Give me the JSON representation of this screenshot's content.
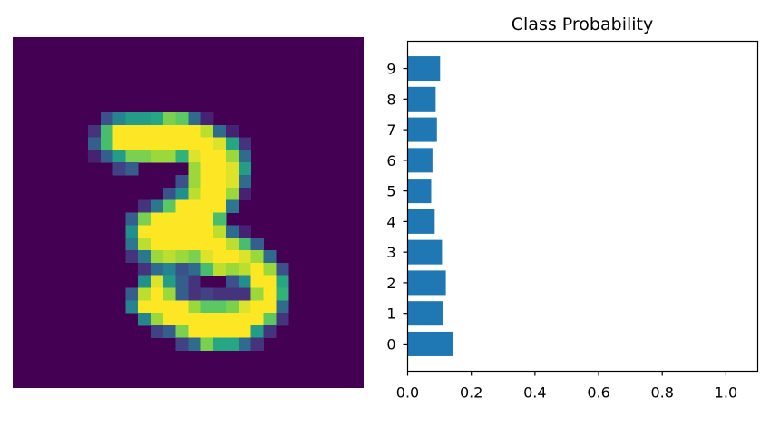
{
  "chart_data": [
    {
      "type": "heatmap",
      "colormap": "viridis",
      "rows": 28,
      "cols": 28,
      "value_range": [
        0,
        1
      ],
      "nonzero_pixels": [
        [
          6,
          7,
          0.25
        ],
        [
          6,
          8,
          0.45
        ],
        [
          6,
          9,
          0.55
        ],
        [
          6,
          10,
          0.55
        ],
        [
          6,
          11,
          0.6
        ],
        [
          6,
          12,
          0.8
        ],
        [
          6,
          13,
          0.75
        ],
        [
          6,
          14,
          0.35
        ],
        [
          6,
          15,
          0.1
        ],
        [
          7,
          6,
          0.15
        ],
        [
          7,
          7,
          0.7
        ],
        [
          7,
          8,
          1
        ],
        [
          7,
          9,
          1
        ],
        [
          7,
          10,
          1
        ],
        [
          7,
          11,
          1
        ],
        [
          7,
          12,
          1
        ],
        [
          7,
          13,
          1
        ],
        [
          7,
          14,
          1
        ],
        [
          7,
          15,
          0.9
        ],
        [
          7,
          16,
          0.35
        ],
        [
          7,
          17,
          0.1
        ],
        [
          8,
          6,
          0.3
        ],
        [
          8,
          7,
          0.7
        ],
        [
          8,
          8,
          1
        ],
        [
          8,
          9,
          1
        ],
        [
          8,
          10,
          1
        ],
        [
          8,
          11,
          1
        ],
        [
          8,
          12,
          1
        ],
        [
          8,
          13,
          1
        ],
        [
          8,
          14,
          1
        ],
        [
          8,
          15,
          1
        ],
        [
          8,
          16,
          0.95
        ],
        [
          8,
          17,
          0.6
        ],
        [
          8,
          18,
          0.15
        ],
        [
          9,
          6,
          0.1
        ],
        [
          9,
          7,
          0.3
        ],
        [
          9,
          8,
          0.55
        ],
        [
          9,
          9,
          0.8
        ],
        [
          9,
          10,
          0.8
        ],
        [
          9,
          11,
          0.85
        ],
        [
          9,
          12,
          0.85
        ],
        [
          9,
          13,
          0.65
        ],
        [
          9,
          14,
          0.95
        ],
        [
          9,
          15,
          1
        ],
        [
          9,
          16,
          1
        ],
        [
          9,
          17,
          0.85
        ],
        [
          9,
          18,
          0.35
        ],
        [
          10,
          8,
          0.2
        ],
        [
          10,
          9,
          0.3
        ],
        [
          10,
          14,
          0.85
        ],
        [
          10,
          15,
          1
        ],
        [
          10,
          16,
          1
        ],
        [
          10,
          17,
          0.95
        ],
        [
          10,
          18,
          0.55
        ],
        [
          11,
          13,
          0.25
        ],
        [
          11,
          14,
          0.85
        ],
        [
          11,
          15,
          1
        ],
        [
          11,
          16,
          1
        ],
        [
          11,
          17,
          0.95
        ],
        [
          11,
          18,
          0.35
        ],
        [
          12,
          12,
          0.25
        ],
        [
          12,
          13,
          0.5
        ],
        [
          12,
          14,
          0.9
        ],
        [
          12,
          15,
          1
        ],
        [
          12,
          16,
          1
        ],
        [
          12,
          17,
          0.85
        ],
        [
          12,
          18,
          0.1
        ],
        [
          13,
          10,
          0.15
        ],
        [
          13,
          11,
          0.4
        ],
        [
          13,
          12,
          0.75
        ],
        [
          13,
          13,
          1
        ],
        [
          13,
          14,
          1
        ],
        [
          13,
          15,
          1
        ],
        [
          13,
          16,
          1
        ],
        [
          13,
          17,
          0.4
        ],
        [
          14,
          9,
          0.3
        ],
        [
          14,
          10,
          0.8
        ],
        [
          14,
          11,
          1
        ],
        [
          14,
          12,
          1
        ],
        [
          14,
          13,
          1
        ],
        [
          14,
          14,
          1
        ],
        [
          14,
          15,
          1
        ],
        [
          14,
          16,
          0.7
        ],
        [
          15,
          9,
          0.5
        ],
        [
          15,
          10,
          1
        ],
        [
          15,
          11,
          1
        ],
        [
          15,
          12,
          1
        ],
        [
          15,
          13,
          1
        ],
        [
          15,
          14,
          1
        ],
        [
          15,
          15,
          1
        ],
        [
          15,
          16,
          0.9
        ],
        [
          15,
          17,
          0.35
        ],
        [
          15,
          18,
          0.1
        ],
        [
          16,
          9,
          0.4
        ],
        [
          16,
          10,
          0.9
        ],
        [
          16,
          11,
          1
        ],
        [
          16,
          12,
          1
        ],
        [
          16,
          13,
          1
        ],
        [
          16,
          14,
          1
        ],
        [
          16,
          15,
          1
        ],
        [
          16,
          16,
          1
        ],
        [
          16,
          17,
          0.9
        ],
        [
          16,
          18,
          0.7
        ],
        [
          16,
          19,
          0.3
        ],
        [
          17,
          9,
          0.15
        ],
        [
          17,
          10,
          0.4
        ],
        [
          17,
          11,
          0.85
        ],
        [
          17,
          12,
          0.9
        ],
        [
          17,
          13,
          0.85
        ],
        [
          17,
          14,
          0.8
        ],
        [
          17,
          15,
          0.95
        ],
        [
          17,
          16,
          1
        ],
        [
          17,
          17,
          1
        ],
        [
          17,
          18,
          0.95
        ],
        [
          17,
          19,
          0.85
        ],
        [
          17,
          20,
          0.35
        ],
        [
          18,
          10,
          0.15
        ],
        [
          18,
          11,
          0.35
        ],
        [
          18,
          12,
          0.45
        ],
        [
          18,
          13,
          0.25
        ],
        [
          18,
          14,
          0.35
        ],
        [
          18,
          15,
          0.7
        ],
        [
          18,
          16,
          0.9
        ],
        [
          18,
          17,
          0.85
        ],
        [
          18,
          18,
          0.9
        ],
        [
          18,
          19,
          1
        ],
        [
          18,
          20,
          0.85
        ],
        [
          18,
          21,
          0.25
        ],
        [
          19,
          10,
          0.5
        ],
        [
          19,
          11,
          0.95
        ],
        [
          19,
          12,
          0.55
        ],
        [
          19,
          13,
          0.3
        ],
        [
          19,
          14,
          0.15
        ],
        [
          19,
          17,
          0.25
        ],
        [
          19,
          18,
          0.5
        ],
        [
          19,
          19,
          1
        ],
        [
          19,
          20,
          1
        ],
        [
          19,
          21,
          0.6
        ],
        [
          20,
          9,
          0.3
        ],
        [
          20,
          10,
          0.9
        ],
        [
          20,
          11,
          1
        ],
        [
          20,
          12,
          0.85
        ],
        [
          20,
          13,
          0.3
        ],
        [
          20,
          14,
          0.15
        ],
        [
          20,
          15,
          0.2
        ],
        [
          20,
          16,
          0.15
        ],
        [
          20,
          17,
          0.15
        ],
        [
          20,
          18,
          0.15
        ],
        [
          20,
          19,
          0.85
        ],
        [
          20,
          20,
          1
        ],
        [
          20,
          21,
          0.65
        ],
        [
          21,
          9,
          0.45
        ],
        [
          21,
          10,
          1
        ],
        [
          21,
          11,
          1
        ],
        [
          21,
          12,
          1
        ],
        [
          21,
          13,
          1
        ],
        [
          21,
          14,
          0.85
        ],
        [
          21,
          15,
          0.75
        ],
        [
          21,
          16,
          0.75
        ],
        [
          21,
          17,
          0.8
        ],
        [
          21,
          18,
          0.95
        ],
        [
          21,
          19,
          1
        ],
        [
          21,
          20,
          1
        ],
        [
          21,
          21,
          0.35
        ],
        [
          22,
          10,
          0.45
        ],
        [
          22,
          11,
          0.85
        ],
        [
          22,
          12,
          1
        ],
        [
          22,
          13,
          1
        ],
        [
          22,
          14,
          1
        ],
        [
          22,
          15,
          1
        ],
        [
          22,
          16,
          1
        ],
        [
          22,
          17,
          1
        ],
        [
          22,
          18,
          1
        ],
        [
          22,
          19,
          1
        ],
        [
          22,
          20,
          0.75
        ],
        [
          22,
          21,
          0.15
        ],
        [
          23,
          11,
          0.2
        ],
        [
          23,
          12,
          0.3
        ],
        [
          23,
          13,
          0.8
        ],
        [
          23,
          14,
          1
        ],
        [
          23,
          15,
          1
        ],
        [
          23,
          16,
          1
        ],
        [
          23,
          17,
          1
        ],
        [
          23,
          18,
          1
        ],
        [
          23,
          19,
          0.55
        ],
        [
          23,
          20,
          0.15
        ],
        [
          24,
          13,
          0.2
        ],
        [
          24,
          14,
          0.35
        ],
        [
          24,
          15,
          0.8
        ],
        [
          24,
          16,
          0.6
        ],
        [
          24,
          17,
          0.6
        ],
        [
          24,
          18,
          0.35
        ],
        [
          24,
          19,
          0.15
        ]
      ]
    },
    {
      "type": "bar",
      "orientation": "horizontal",
      "title": "Class Probability",
      "categories": [
        "0",
        "1",
        "2",
        "3",
        "4",
        "5",
        "6",
        "7",
        "8",
        "9"
      ],
      "values": [
        0.143,
        0.112,
        0.12,
        0.108,
        0.085,
        0.074,
        0.078,
        0.092,
        0.088,
        0.102
      ],
      "xlim": [
        0,
        1.1
      ],
      "xticks": [
        "0.0",
        "0.2",
        "0.4",
        "0.6",
        "0.8",
        "1.0"
      ],
      "xtick_values": [
        0,
        0.2,
        0.4,
        0.6,
        0.8,
        1.0
      ],
      "grid": false,
      "bar_color": "#1f77b4"
    }
  ]
}
